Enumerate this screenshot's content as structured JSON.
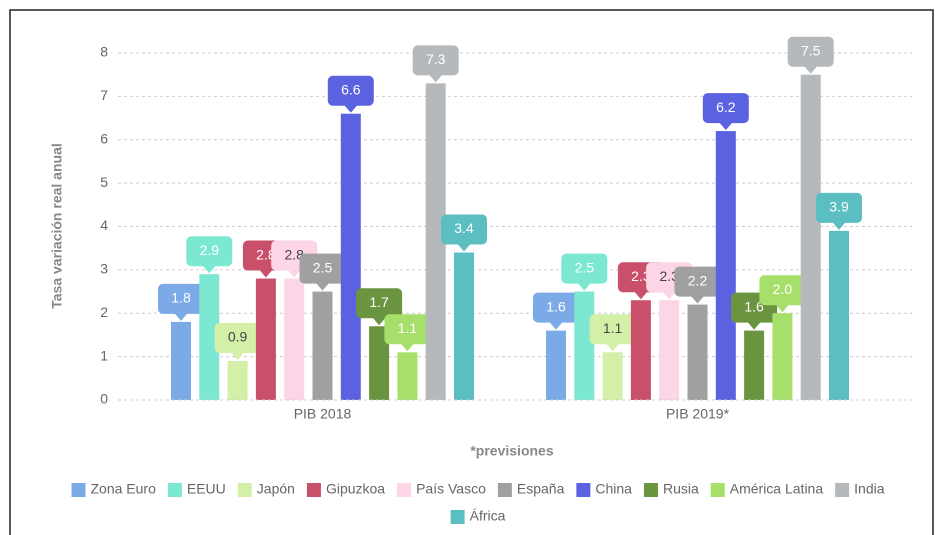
{
  "chart_data": {
    "type": "bar",
    "y_axis_label": "Tasa variación real anual",
    "x_axis_label": "*previsiones",
    "categories": [
      "PIB 2018",
      "PIB 2019*"
    ],
    "series": [
      {
        "name": "Zona Euro",
        "color": "#7baae6",
        "values": [
          1.8,
          1.6
        ]
      },
      {
        "name": "EEUU",
        "color": "#7de8d2",
        "values": [
          2.9,
          2.5
        ]
      },
      {
        "name": "Japón",
        "color": "#d4f0a8",
        "values": [
          0.9,
          1.1
        ]
      },
      {
        "name": "Gipuzkoa",
        "color": "#c9506a",
        "values": [
          2.8,
          2.3
        ]
      },
      {
        "name": "País Vasco",
        "color": "#fcd5e6",
        "values": [
          2.8,
          2.3
        ]
      },
      {
        "name": "España",
        "color": "#a0a0a0",
        "values": [
          2.5,
          2.2
        ]
      },
      {
        "name": "China",
        "color": "#5b62e0",
        "values": [
          6.6,
          6.2
        ]
      },
      {
        "name": "Rusia",
        "color": "#6b9440",
        "values": [
          1.7,
          1.6
        ]
      },
      {
        "name": "América Latina",
        "color": "#a6e06a",
        "values": [
          1.1,
          2.0
        ],
        "value_labels": [
          "1.1",
          "2.0"
        ]
      },
      {
        "name": "India",
        "color": "#b5b9bc",
        "values": [
          7.3,
          7.5
        ]
      },
      {
        "name": "África",
        "color": "#5bbfc2",
        "values": [
          3.4,
          3.9
        ]
      }
    ],
    "ylim": [
      0,
      8
    ],
    "yticks": [
      0,
      1,
      2,
      3,
      4,
      5,
      6,
      7,
      8
    ],
    "grid": true,
    "legend": "bottom"
  }
}
